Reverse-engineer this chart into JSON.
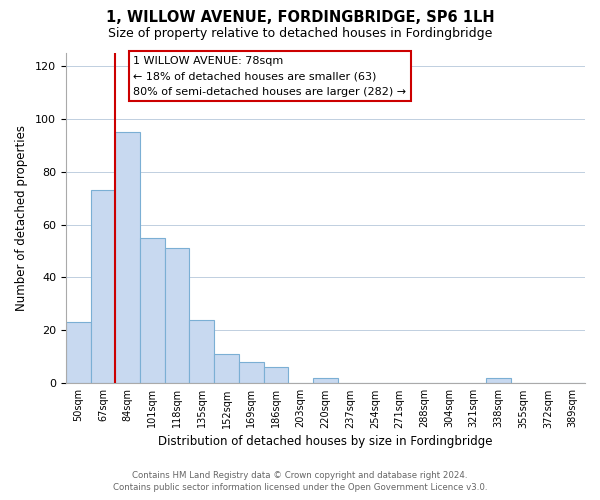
{
  "title": "1, WILLOW AVENUE, FORDINGBRIDGE, SP6 1LH",
  "subtitle": "Size of property relative to detached houses in Fordingbridge",
  "xlabel": "Distribution of detached houses by size in Fordingbridge",
  "ylabel": "Number of detached properties",
  "bar_labels": [
    "50sqm",
    "67sqm",
    "84sqm",
    "101sqm",
    "118sqm",
    "135sqm",
    "152sqm",
    "169sqm",
    "186sqm",
    "203sqm",
    "220sqm",
    "237sqm",
    "254sqm",
    "271sqm",
    "288sqm",
    "304sqm",
    "321sqm",
    "338sqm",
    "355sqm",
    "372sqm",
    "389sqm"
  ],
  "bar_values": [
    23,
    73,
    95,
    55,
    51,
    24,
    11,
    8,
    6,
    0,
    2,
    0,
    0,
    0,
    0,
    0,
    0,
    2,
    0,
    0,
    0
  ],
  "bar_color": "#c8d9f0",
  "bar_edge_color": "#7bafd4",
  "vline_color": "#cc0000",
  "ylim": [
    0,
    125
  ],
  "yticks": [
    0,
    20,
    40,
    60,
    80,
    100,
    120
  ],
  "annotation_line1": "1 WILLOW AVENUE: 78sqm",
  "annotation_line2": "← 18% of detached houses are smaller (63)",
  "annotation_line3": "80% of semi-detached houses are larger (282) →",
  "annotation_box_color": "#ffffff",
  "annotation_border_color": "#cc0000",
  "footer_line1": "Contains HM Land Registry data © Crown copyright and database right 2024.",
  "footer_line2": "Contains public sector information licensed under the Open Government Licence v3.0.",
  "background_color": "#ffffff",
  "grid_color": "#c0cfe0"
}
